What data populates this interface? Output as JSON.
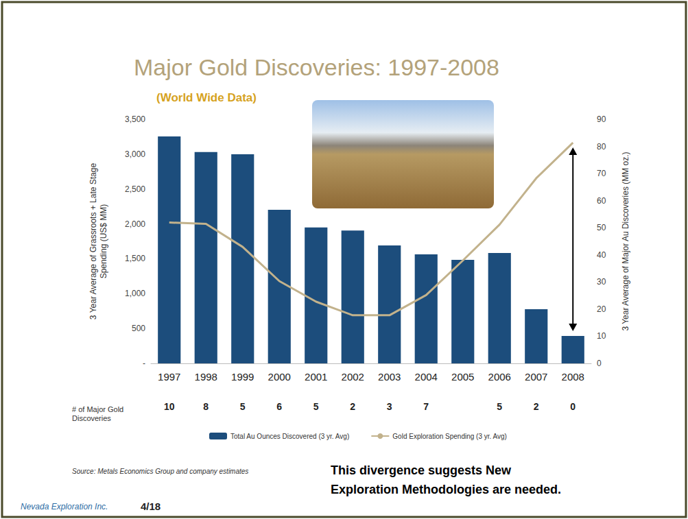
{
  "chart_data": {
    "type": "bar",
    "title": "Major Gold Discoveries: 1997-2008",
    "subtitle": "(World Wide Data)",
    "categories": [
      "1997",
      "1998",
      "1999",
      "2000",
      "2001",
      "2002",
      "2003",
      "2004",
      "2005",
      "2006",
      "2007",
      "2008"
    ],
    "series": [
      {
        "name": "Total Au Ounces Discovered (3 yr. Avg)",
        "type": "bar",
        "axis": "y2",
        "color": "#1c4d7c",
        "values": [
          83.7,
          77.9,
          77.1,
          56.6,
          50.1,
          49.0,
          43.5,
          40.2,
          38.2,
          40.7,
          20.0,
          10.1
        ]
      },
      {
        "name": "Gold Exploration Spending (3 yr. Avg)",
        "type": "line",
        "axis": "y",
        "color": "#c2b28c",
        "marker": "none",
        "line_style": "solid",
        "values": [
          2020,
          2000,
          1670,
          1180,
          885,
          690,
          690,
          980,
          1475,
          1990,
          2655,
          3165
        ]
      }
    ],
    "y_label": "3 Year Average of Grassroots + Late Stage Spending (US$ MM)",
    "y2_label": "3 Year Average of Major Au Discoveries (MM oz.)",
    "ylim": [
      0,
      3500
    ],
    "yticks": [
      {
        "value": 0,
        "label": "-"
      },
      500,
      {
        "value": 1000,
        "label": "1,000"
      },
      {
        "value": 1500,
        "label": "1,500"
      },
      {
        "value": 2000,
        "label": "2,000"
      },
      {
        "value": 2500,
        "label": "2,500"
      },
      {
        "value": 3000,
        "label": "3,000"
      },
      {
        "value": 3500,
        "label": "3,500"
      }
    ],
    "y2lim": [
      0,
      90
    ],
    "y2ticks": [
      0,
      10,
      20,
      30,
      40,
      50,
      60,
      70,
      80,
      90
    ],
    "discoveries_label": "# of Major Gold Discoveries",
    "discoveries": [
      10,
      8,
      5,
      6,
      5,
      2,
      3,
      7,
      null,
      5,
      2,
      0
    ],
    "source": "Source: Metals Economics Group and company estimates",
    "annotation": "This divergence suggests New Exploration Methodologies are needed.",
    "logo": "Nevada Exploration Inc.",
    "page": "4/18",
    "grid": false,
    "legend": "bottom"
  }
}
